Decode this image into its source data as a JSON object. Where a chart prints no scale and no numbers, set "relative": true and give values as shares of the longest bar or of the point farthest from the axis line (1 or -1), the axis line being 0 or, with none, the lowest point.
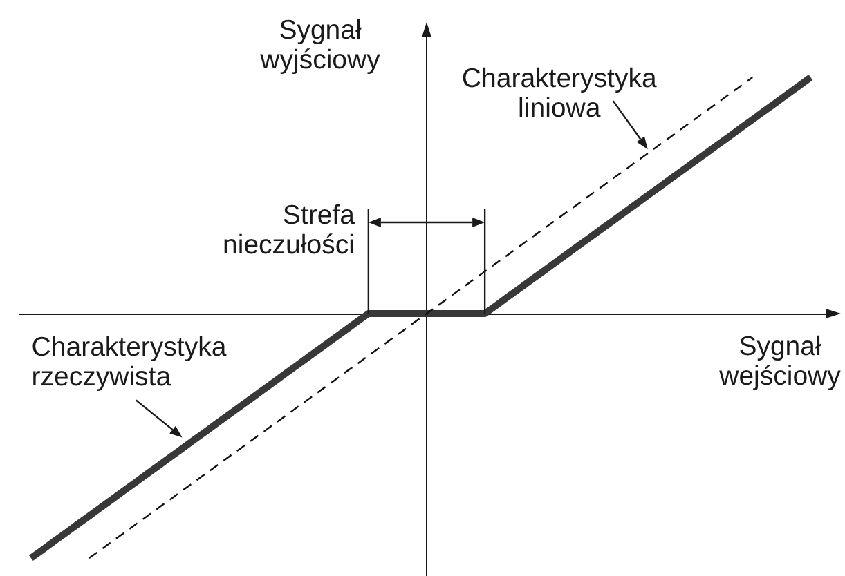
{
  "chart_data": {
    "type": "line",
    "relative": true,
    "xlabel": "Sygnał wejściowy",
    "ylabel": "Sygnał wyjściowy",
    "annotations": [
      "Strefa nieczułości"
    ],
    "categories": [
      null,
      null,
      null,
      null,
      null,
      null,
      null,
      null,
      null,
      null,
      null,
      null,
      null,
      null,
      null,
      null,
      null,
      null,
      null,
      null,
      null,
      null,
      null,
      null,
      null,
      null,
      null,
      null,
      null,
      null,
      null,
      null,
      null,
      null,
      null,
      null,
      null,
      null,
      null,
      null,
      null,
      null,
      null,
      null,
      null,
      null,
      null,
      null,
      null,
      null,
      null,
      null,
      null,
      null,
      null,
      null,
      null,
      null,
      null,
      null,
      null,
      null,
      null,
      null,
      null,
      null,
      null,
      null,
      null,
      null,
      null
    ],
    "series": [
      {
        "name": "Charakterystyka rzeczywista",
        "color": "#383838",
        "line_style": "solid",
        "values": [
          null,
          -1,
          -0.966,
          -0.931,
          -0.897,
          -0.862,
          -0.828,
          -0.793,
          -0.759,
          -0.724,
          -0.69,
          -0.655,
          -0.621,
          -0.586,
          -0.552,
          -0.517,
          -0.483,
          -0.448,
          -0.414,
          -0.379,
          -0.345,
          -0.31,
          -0.276,
          -0.241,
          -0.207,
          -0.172,
          -0.138,
          -0.103,
          -0.069,
          -0.034,
          0,
          0,
          0,
          0,
          0,
          0,
          0,
          0,
          0,
          0,
          0,
          0.034,
          0.069,
          0.103,
          0.138,
          0.172,
          0.207,
          0.241,
          0.276,
          0.31,
          0.345,
          0.379,
          0.414,
          0.448,
          0.483,
          0.517,
          0.552,
          0.586,
          0.621,
          0.655,
          0.69,
          0.724,
          0.759,
          0.793,
          0.828,
          0.862,
          0.897,
          0.931,
          0.966,
          null,
          null
        ]
      },
      {
        "name": "Charakterystyka liniowa",
        "color": "#111111",
        "line_style": "dashed",
        "values": [
          null,
          null,
          null,
          null,
          null,
          null,
          -1,
          -0.966,
          -0.931,
          -0.897,
          -0.862,
          -0.828,
          -0.793,
          -0.759,
          -0.724,
          -0.69,
          -0.655,
          -0.621,
          -0.586,
          -0.552,
          -0.517,
          -0.483,
          -0.448,
          -0.414,
          -0.379,
          -0.345,
          -0.31,
          -0.276,
          -0.241,
          -0.207,
          -0.172,
          -0.138,
          -0.103,
          -0.069,
          -0.034,
          0,
          0.034,
          0.069,
          0.103,
          0.138,
          0.172,
          0.207,
          0.241,
          0.276,
          0.31,
          0.345,
          0.379,
          0.414,
          0.448,
          0.483,
          0.517,
          0.552,
          0.586,
          0.621,
          0.655,
          0.69,
          0.724,
          0.759,
          0.793,
          0.828,
          0.862,
          0.897,
          0.931,
          0.966,
          null,
          null,
          null,
          null,
          null,
          null,
          null
        ]
      }
    ],
    "legend": false,
    "grid": false,
    "tick_labels": false
  }
}
